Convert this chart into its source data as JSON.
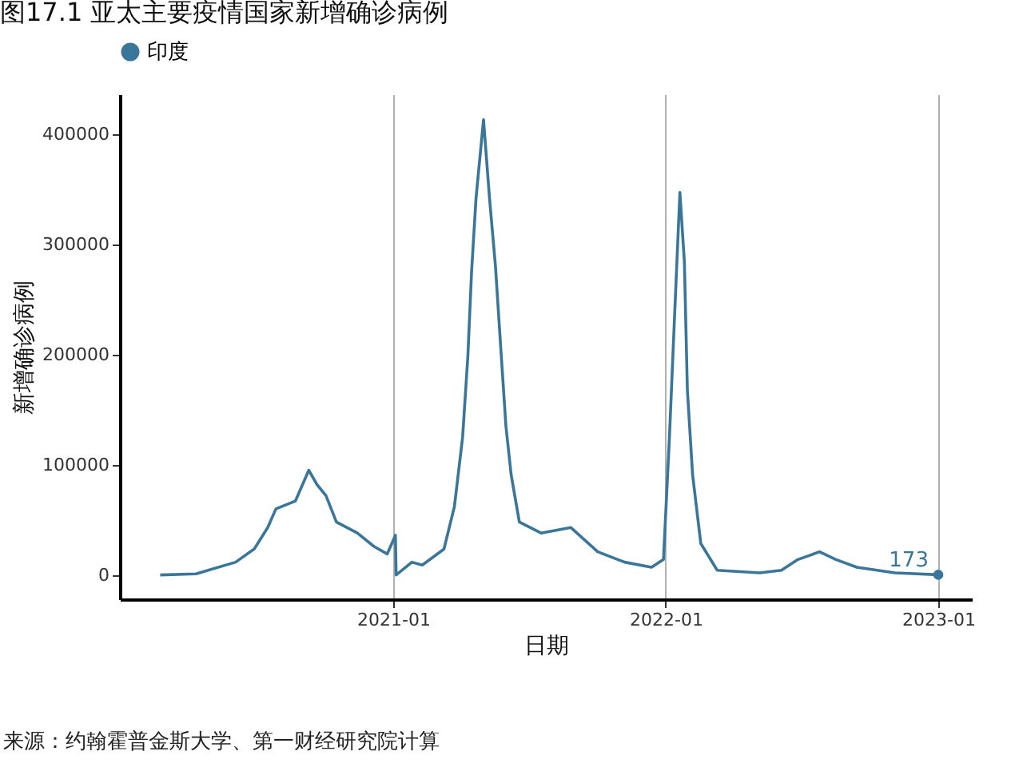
{
  "chart_data": {
    "type": "line",
    "title": "图17.1 亚太主要疫情国家新增确诊病例",
    "xlabel": "日期",
    "ylabel": "新增确诊病例",
    "annotations": [
      "来源：约翰霍普金斯大学、第一财经研究院计算"
    ],
    "x": [
      "2020-02-24",
      "2020-04-12",
      "2020-06-04",
      "2020-06-29",
      "2020-07-17",
      "2020-07-28",
      "2020-08-23",
      "2020-09-10",
      "2020-09-21",
      "2020-10-03",
      "2020-10-17",
      "2020-11-14",
      "2020-12-06",
      "2020-12-24",
      "2021-01-04",
      "2021-01-05",
      "2021-01-26",
      "2021-02-09",
      "2021-03-10",
      "2021-03-24",
      "2021-04-04",
      "2021-04-11",
      "2021-04-16",
      "2021-04-22",
      "2021-05-02",
      "2021-05-10",
      "2021-05-18",
      "2021-05-25",
      "2021-06-01",
      "2021-06-08",
      "2021-06-19",
      "2021-07-18",
      "2021-08-27",
      "2021-10-02",
      "2021-11-07",
      "2021-12-13",
      "2021-12-29",
      "2022-01-06",
      "2022-01-12",
      "2022-01-20",
      "2022-01-26",
      "2022-01-30",
      "2022-02-06",
      "2022-02-17",
      "2022-03-11",
      "2022-05-07",
      "2022-06-05",
      "2022-06-27",
      "2022-07-26",
      "2022-08-17",
      "2022-09-14",
      "2022-11-04",
      "2023-01-01"
    ],
    "series": [
      {
        "name": "印度",
        "color": "#3a7699",
        "values": [
          0,
          1000,
          11600,
          23600,
          43000,
          60000,
          67000,
          95000,
          82000,
          72000,
          48000,
          38000,
          26000,
          19000,
          36000,
          0,
          11600,
          9000,
          23500,
          62000,
          125000,
          198000,
          275000,
          342000,
          413000,
          342000,
          280000,
          207000,
          135000,
          91000,
          48000,
          38000,
          43000,
          21000,
          11600,
          7000,
          14000,
          125000,
          221000,
          347000,
          284000,
          168000,
          91000,
          28500,
          4300,
          1900,
          4300,
          14000,
          21000,
          14000,
          7000,
          1900,
          173
        ],
        "value_labels": [
          null,
          null,
          null,
          null,
          null,
          null,
          null,
          null,
          null,
          null,
          null,
          null,
          null,
          null,
          null,
          null,
          null,
          null,
          null,
          null,
          null,
          null,
          null,
          null,
          null,
          null,
          null,
          null,
          null,
          null,
          null,
          null,
          null,
          null,
          null,
          null,
          null,
          null,
          null,
          null,
          null,
          null,
          null,
          null,
          null,
          null,
          null,
          null,
          null,
          null,
          null,
          null,
          "173"
        ]
      }
    ],
    "xlim": [
      "2020-01-01",
      "2023-02-15"
    ],
    "xticks": [
      "2021-01",
      "2022-01",
      "2023-01"
    ],
    "ylim": [
      -22000,
      436000
    ],
    "yticks": [
      0,
      100000,
      200000,
      300000,
      400000
    ],
    "grid": "x",
    "legend": "top"
  }
}
